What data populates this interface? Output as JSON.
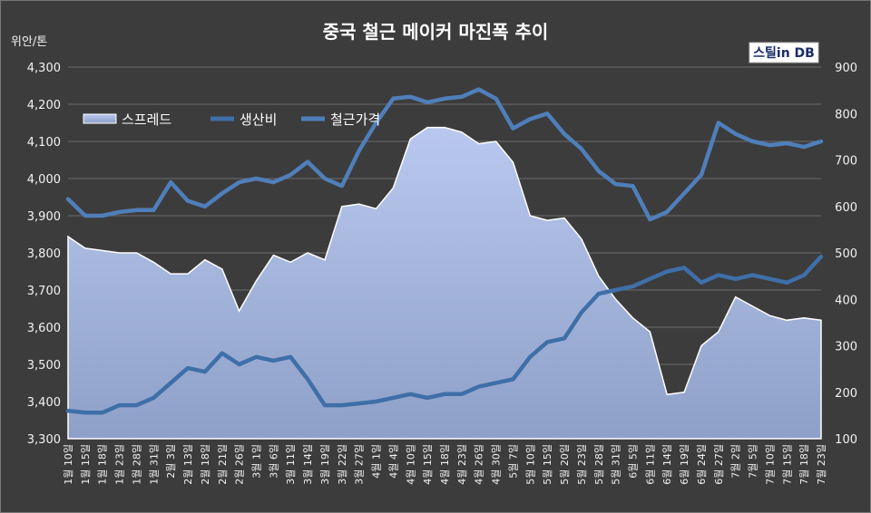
{
  "chart_data": {
    "type": "line",
    "title": "중국 철근 메이커 마진폭 추이",
    "unit_label": "위안/톤",
    "brand_logo": "스틸in DB",
    "ylim": [
      3300,
      4300
    ],
    "y2lim": [
      100,
      900
    ],
    "y_ticks": [
      "3,300",
      "3,400",
      "3,500",
      "3,600",
      "3,700",
      "3,800",
      "3,900",
      "4,000",
      "4,100",
      "4,200",
      "4,300"
    ],
    "y2_ticks": [
      "100",
      "200",
      "300",
      "400",
      "500",
      "600",
      "700",
      "800",
      "900"
    ],
    "x": [
      "1월 10일",
      "1월 15일",
      "1월 18일",
      "1월 23일",
      "1월 28일",
      "1월 31일",
      "2월 3일",
      "2월 13일",
      "2월 18일",
      "2월 21일",
      "2월 26일",
      "3월 1일",
      "3월 6일",
      "3월 11일",
      "3월 14일",
      "3월 19일",
      "3월 22일",
      "3월 27일",
      "4월 1일",
      "4월 4일",
      "4월 10일",
      "4월 15일",
      "4월 18일",
      "4월 23일",
      "4월 26일",
      "4월 30일",
      "5월 7일",
      "5월 10일",
      "5월 15일",
      "5월 20일",
      "5월 23일",
      "5월 28일",
      "5월 31일",
      "6월 5일",
      "6월 11일",
      "6월 14일",
      "6월 19일",
      "6월 24일",
      "6월 27일",
      "7월 2일",
      "7월 5일",
      "7월 10일",
      "7월 15일",
      "7월 18일",
      "7월 23일"
    ],
    "legend": [
      "스프레드",
      "생산비",
      "철근가격"
    ],
    "colors": {
      "spread": "#aebfe6",
      "cost": "#3f6fa8",
      "price": "#4f7fba"
    },
    "series": [
      {
        "name": "스프레드",
        "axis": "right",
        "values": [
          535,
          510,
          505,
          500,
          500,
          480,
          455,
          455,
          485,
          465,
          375,
          440,
          495,
          480,
          500,
          485,
          600,
          605,
          595,
          640,
          745,
          770,
          770,
          760,
          735,
          740,
          695,
          580,
          570,
          575,
          530,
          450,
          400,
          360,
          330,
          195,
          200,
          300,
          330,
          405,
          385,
          365,
          355,
          360,
          355
        ]
      },
      {
        "name": "생산비",
        "axis": "left",
        "values": [
          3375,
          3370,
          3370,
          3390,
          3390,
          3410,
          3450,
          3490,
          3480,
          3530,
          3500,
          3520,
          3510,
          3520,
          3460,
          3390,
          3390,
          3395,
          3400,
          3410,
          3420,
          3410,
          3420,
          3420,
          3440,
          3450,
          3460,
          3520,
          3560,
          3570,
          3640,
          3690,
          3700,
          3710,
          3730,
          3750,
          3760,
          3720,
          3740,
          3730,
          3740,
          3730,
          3720,
          3740,
          3790
        ]
      },
      {
        "name": "철근가격",
        "axis": "left",
        "values": [
          3945,
          3900,
          3900,
          3910,
          3915,
          3915,
          3990,
          3940,
          3925,
          3960,
          3990,
          4000,
          3990,
          4010,
          4045,
          4000,
          3980,
          4075,
          4150,
          4215,
          4220,
          4205,
          4215,
          4220,
          4240,
          4215,
          4135,
          4160,
          4175,
          4120,
          4080,
          4020,
          3985,
          3980,
          3890,
          3910,
          3960,
          4010,
          4150,
          4120,
          4100,
          4090,
          4095,
          4085,
          4100
        ]
      }
    ]
  }
}
